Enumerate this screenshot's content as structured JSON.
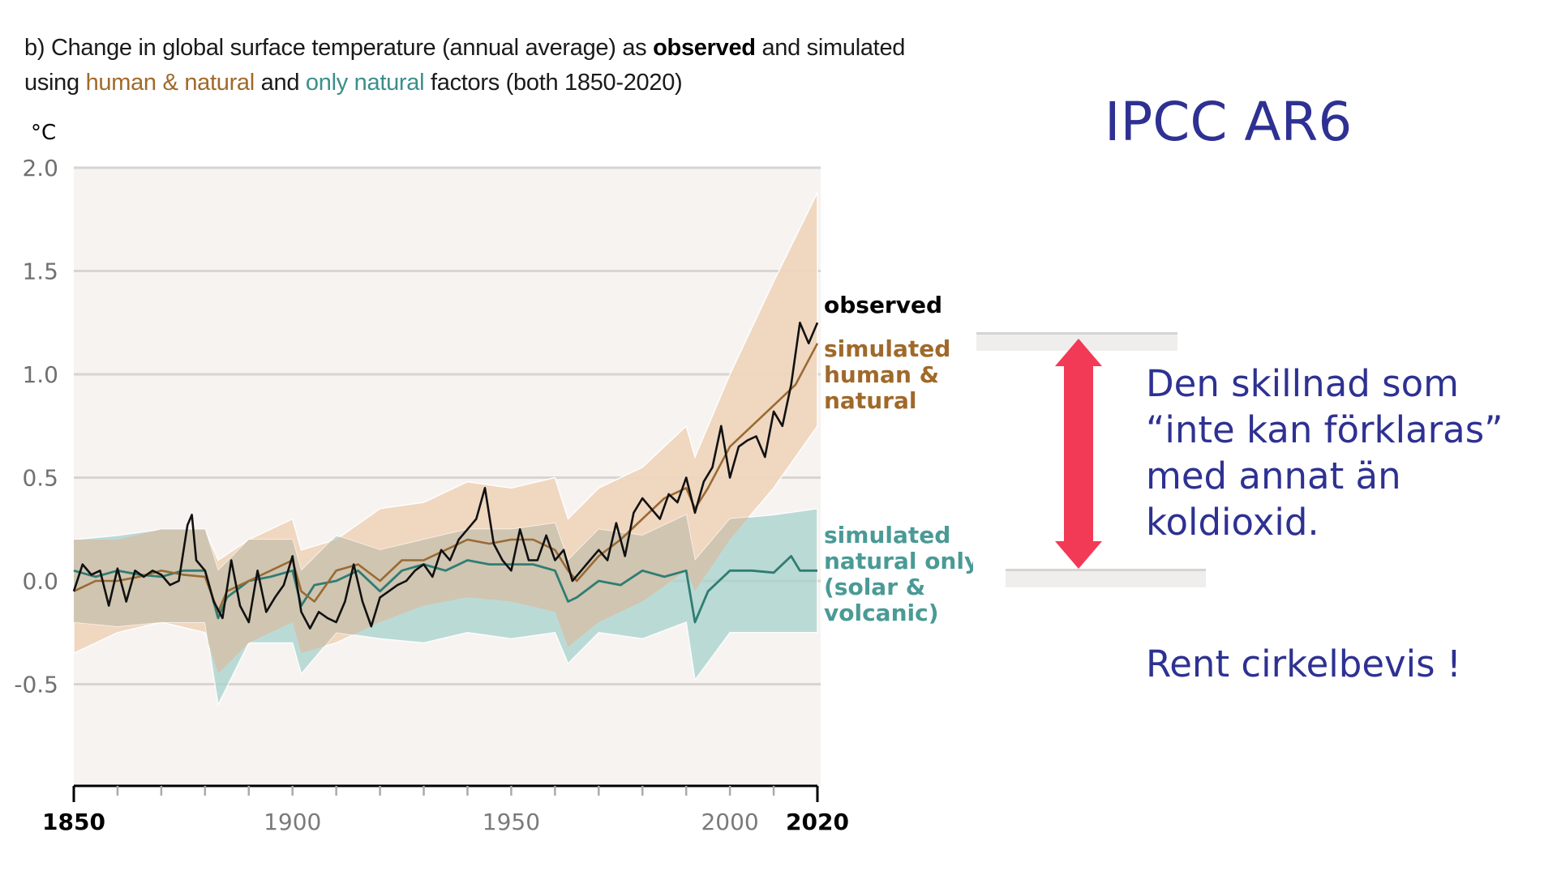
{
  "slide": {
    "title": "IPCC AR6",
    "annotation_lines": [
      "Den skillnad som",
      "“inte kan förklaras”",
      "med annat än",
      "koldioxid."
    ],
    "conclusion": "Rent cirkelbevis !",
    "arrow_color": "#f23a57",
    "text_color": "#2e3192"
  },
  "chart_data": {
    "type": "line",
    "title_parts": [
      {
        "text": "b) Change in global surface temperature (annual average) as ",
        "style": "plain"
      },
      {
        "text": "observed",
        "style": "bold"
      },
      {
        "text": " and simulated using ",
        "style": "plain"
      },
      {
        "text": "human & natural",
        "style": "human_natural"
      },
      {
        "text": " and ",
        "style": "plain"
      },
      {
        "text": "only natural",
        "style": "natural_only"
      },
      {
        "text": " factors (both 1850-2020)",
        "style": "plain"
      }
    ],
    "ylabel": "°C",
    "xlabel": "",
    "xlim": [
      1850,
      2020
    ],
    "ylim": [
      -1.0,
      2.0
    ],
    "yticks": [
      2.0,
      1.5,
      1.0,
      0.5,
      0.0,
      -0.5
    ],
    "ytick_labels": [
      "2.0",
      "1.5",
      "1.0",
      "0.5",
      "0.0",
      "-0.5"
    ],
    "xticks_major": [
      1850,
      1900,
      1950,
      2000,
      2020
    ],
    "xtick_labels": [
      "1850",
      "1900",
      "1950",
      "2000",
      "2020"
    ],
    "xtick_bold": [
      "1850",
      "2020"
    ],
    "xticks_minor_step": 10,
    "grid": true,
    "colors": {
      "observed": "#111111",
      "human_natural": "#9a6a33",
      "human_natural_band": "#f0d6be",
      "natural_only": "#2f7d73",
      "natural_only_band": "#a7d2cd",
      "overlap_band": "#d1c3ae",
      "plot_background": "#f6f3f1",
      "gridline": "#d7d4d2"
    },
    "series": [
      {
        "name": "observed",
        "label": "observed",
        "x": [
          1850,
          1852,
          1854,
          1856,
          1858,
          1860,
          1862,
          1864,
          1866,
          1868,
          1870,
          1872,
          1874,
          1876,
          1877,
          1878,
          1880,
          1882,
          1884,
          1886,
          1888,
          1890,
          1892,
          1894,
          1896,
          1898,
          1900,
          1902,
          1904,
          1906,
          1908,
          1910,
          1912,
          1914,
          1916,
          1918,
          1920,
          1922,
          1924,
          1926,
          1928,
          1930,
          1932,
          1934,
          1936,
          1938,
          1940,
          1942,
          1944,
          1946,
          1948,
          1950,
          1952,
          1954,
          1956,
          1958,
          1960,
          1962,
          1964,
          1966,
          1968,
          1970,
          1972,
          1974,
          1976,
          1978,
          1980,
          1982,
          1984,
          1986,
          1988,
          1990,
          1992,
          1994,
          1996,
          1998,
          2000,
          2002,
          2004,
          2006,
          2008,
          2010,
          2012,
          2014,
          2016,
          2018,
          2020
        ],
        "values": [
          -0.05,
          0.08,
          0.03,
          0.05,
          -0.12,
          0.06,
          -0.1,
          0.05,
          0.02,
          0.05,
          0.03,
          -0.02,
          0.0,
          0.27,
          0.32,
          0.1,
          0.05,
          -0.1,
          -0.18,
          0.1,
          -0.12,
          -0.2,
          0.05,
          -0.15,
          -0.08,
          -0.02,
          0.12,
          -0.15,
          -0.23,
          -0.15,
          -0.18,
          -0.2,
          -0.1,
          0.08,
          -0.1,
          -0.22,
          -0.08,
          -0.05,
          -0.02,
          0.0,
          0.05,
          0.08,
          0.02,
          0.15,
          0.1,
          0.2,
          0.25,
          0.3,
          0.45,
          0.18,
          0.1,
          0.05,
          0.25,
          0.1,
          0.1,
          0.22,
          0.1,
          0.15,
          0.0,
          0.05,
          0.1,
          0.15,
          0.1,
          0.28,
          0.12,
          0.33,
          0.4,
          0.35,
          0.3,
          0.42,
          0.38,
          0.5,
          0.33,
          0.48,
          0.55,
          0.75,
          0.5,
          0.65,
          0.68,
          0.7,
          0.6,
          0.82,
          0.75,
          0.95,
          1.25,
          1.15,
          1.25
        ]
      },
      {
        "name": "simulated human & natural",
        "label": "simulated\nhuman &\nnatural",
        "x": [
          1850,
          1855,
          1860,
          1865,
          1870,
          1875,
          1880,
          1883,
          1885,
          1890,
          1895,
          1900,
          1902,
          1905,
          1910,
          1915,
          1920,
          1925,
          1930,
          1935,
          1940,
          1945,
          1950,
          1955,
          1960,
          1963,
          1965,
          1970,
          1975,
          1980,
          1985,
          1990,
          1992,
          1995,
          2000,
          2005,
          2010,
          2015,
          2020
        ],
        "values": [
          -0.05,
          0.0,
          0.0,
          0.02,
          0.05,
          0.03,
          0.02,
          -0.15,
          -0.05,
          0.0,
          0.05,
          0.1,
          -0.05,
          -0.1,
          0.05,
          0.08,
          0.0,
          0.1,
          0.1,
          0.15,
          0.2,
          0.18,
          0.2,
          0.2,
          0.15,
          0.05,
          0.0,
          0.12,
          0.2,
          0.3,
          0.4,
          0.45,
          0.35,
          0.45,
          0.65,
          0.75,
          0.85,
          0.95,
          1.15
        ]
      },
      {
        "name": "simulated natural only",
        "label": "simulated\nnatural only\n(solar &\nvolcanic)",
        "x": [
          1850,
          1855,
          1860,
          1865,
          1870,
          1875,
          1880,
          1883,
          1885,
          1890,
          1895,
          1900,
          1902,
          1905,
          1910,
          1915,
          1920,
          1925,
          1930,
          1935,
          1940,
          1945,
          1950,
          1955,
          1960,
          1963,
          1965,
          1970,
          1975,
          1980,
          1985,
          1990,
          1992,
          1995,
          2000,
          2005,
          2010,
          2014,
          2016,
          2020
        ],
        "values": [
          0.05,
          0.02,
          0.05,
          0.03,
          0.02,
          0.05,
          0.05,
          -0.18,
          -0.08,
          0.0,
          0.02,
          0.05,
          -0.12,
          -0.02,
          0.0,
          0.05,
          -0.05,
          0.05,
          0.08,
          0.05,
          0.1,
          0.08,
          0.08,
          0.08,
          0.05,
          -0.1,
          -0.08,
          0.0,
          -0.02,
          0.05,
          0.02,
          0.05,
          -0.2,
          -0.05,
          0.05,
          0.05,
          0.04,
          0.12,
          0.05,
          0.05
        ]
      }
    ],
    "bands": [
      {
        "name": "human & natural range",
        "x": [
          1850,
          1860,
          1870,
          1880,
          1883,
          1890,
          1900,
          1902,
          1910,
          1920,
          1930,
          1940,
          1950,
          1960,
          1963,
          1970,
          1980,
          1990,
          1992,
          2000,
          2010,
          2020
        ],
        "upper": [
          0.2,
          0.2,
          0.25,
          0.25,
          0.1,
          0.2,
          0.3,
          0.15,
          0.2,
          0.35,
          0.38,
          0.48,
          0.45,
          0.5,
          0.3,
          0.45,
          0.55,
          0.75,
          0.6,
          1.0,
          1.45,
          1.88
        ],
        "lower": [
          -0.35,
          -0.25,
          -0.2,
          -0.25,
          -0.45,
          -0.3,
          -0.2,
          -0.35,
          -0.3,
          -0.2,
          -0.12,
          -0.08,
          -0.1,
          -0.15,
          -0.32,
          -0.2,
          -0.1,
          0.05,
          -0.05,
          0.2,
          0.45,
          0.75
        ]
      },
      {
        "name": "natural only range",
        "x": [
          1850,
          1860,
          1870,
          1880,
          1883,
          1890,
          1900,
          1902,
          1910,
          1920,
          1930,
          1940,
          1950,
          1960,
          1963,
          1970,
          1980,
          1990,
          1992,
          2000,
          2010,
          2020
        ],
        "upper": [
          0.2,
          0.22,
          0.25,
          0.25,
          0.05,
          0.2,
          0.2,
          0.05,
          0.22,
          0.15,
          0.2,
          0.25,
          0.25,
          0.28,
          0.1,
          0.25,
          0.22,
          0.32,
          0.1,
          0.3,
          0.32,
          0.35
        ],
        "lower": [
          -0.2,
          -0.22,
          -0.2,
          -0.2,
          -0.6,
          -0.3,
          -0.3,
          -0.45,
          -0.25,
          -0.28,
          -0.3,
          -0.25,
          -0.28,
          -0.25,
          -0.4,
          -0.25,
          -0.28,
          -0.2,
          -0.48,
          -0.25,
          -0.25,
          -0.25
        ]
      }
    ]
  }
}
